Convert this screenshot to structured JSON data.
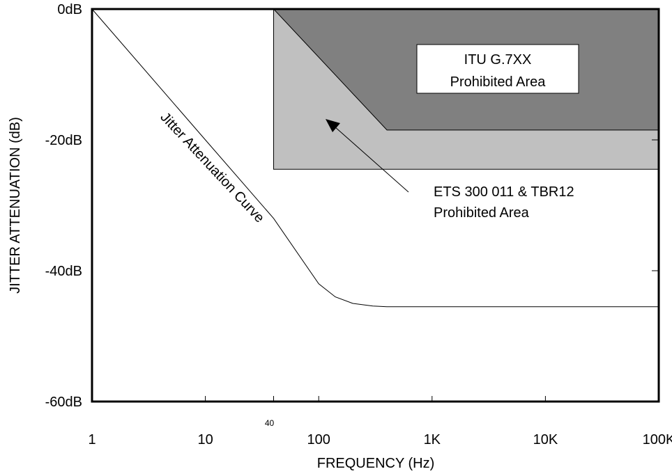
{
  "chart_data": {
    "type": "line",
    "title": "",
    "xlabel": "FREQUENCY (Hz)",
    "ylabel": "JITTER ATTENUATION (dB)",
    "x_scale": "log",
    "xlim": [
      1,
      100000
    ],
    "ylim": [
      -60,
      0
    ],
    "x_ticks": [
      {
        "value": 1,
        "label": "1"
      },
      {
        "value": 10,
        "label": "10"
      },
      {
        "value": 100,
        "label": "100"
      },
      {
        "value": 1000,
        "label": "1K"
      },
      {
        "value": 10000,
        "label": "10K"
      },
      {
        "value": 100000,
        "label": "100K"
      }
    ],
    "x_marker": {
      "value": 40,
      "label": "40"
    },
    "y_ticks": [
      {
        "value": 0,
        "label": "0dB"
      },
      {
        "value": -20,
        "label": "-20dB"
      },
      {
        "value": -40,
        "label": "-40dB"
      },
      {
        "value": -60,
        "label": "-60dB"
      }
    ],
    "series": [
      {
        "name": "Jitter Attenuation Curve",
        "color": "#000000",
        "x": [
          1,
          10,
          40,
          100,
          140,
          200,
          300,
          400,
          100000
        ],
        "y": [
          0,
          -20,
          -32,
          -42,
          -44,
          -45,
          -45.4,
          -45.5,
          -45.5
        ]
      }
    ],
    "regions": [
      {
        "name": "ITU G.7XX Prohibited Area",
        "color": "#808080",
        "x": [
          40,
          100000,
          100000,
          400,
          40
        ],
        "y": [
          0,
          0,
          -18.5,
          -18.5,
          0
        ]
      },
      {
        "name": "ETS 300 011 & TBR12 Prohibited Area",
        "color": "#c0c0c0",
        "x": [
          40,
          100000,
          100000,
          40
        ],
        "y": [
          0,
          0,
          -24.5,
          -24.5
        ]
      }
    ],
    "annotations": {
      "curve_label": "Jitter Attenuation Curve",
      "itu_line1": "ITU G.7XX",
      "itu_line2": "Prohibited Area",
      "ets_line1": "ETS 300 011 & TBR12",
      "ets_line2": "Prohibited Area"
    },
    "grid": false,
    "legend": "none"
  }
}
